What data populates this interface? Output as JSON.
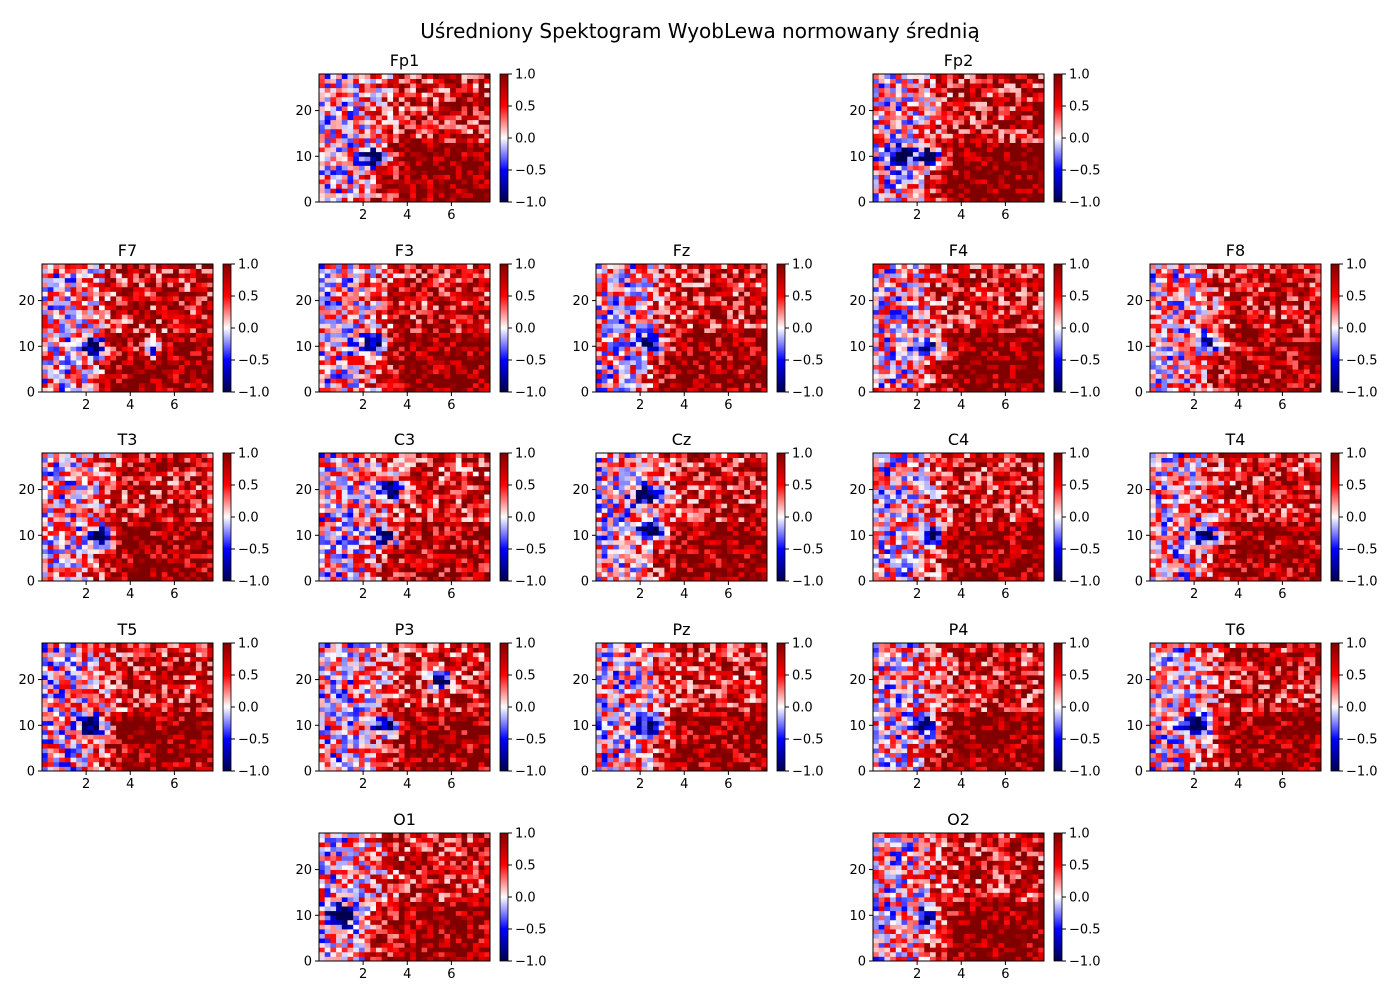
{
  "title": "Uśredniony Spektogram WyobLewa normowany średnią",
  "chart_data": {
    "type": "heatmap",
    "colormap": "seismic",
    "value_range": [
      -1.0,
      1.0
    ],
    "colorbar_ticks": [
      "1.0",
      "0.5",
      "0.0",
      "−0.5",
      "−1.0"
    ],
    "x_range": [
      0,
      7.75
    ],
    "x_ticks": [
      2,
      4,
      6
    ],
    "y_range": [
      0,
      28
    ],
    "y_ticks": [
      0,
      10,
      20
    ],
    "grid_cols": 30,
    "grid_rows": 28,
    "panels": [
      {
        "name": "Fp1",
        "seed": 11,
        "lowShift": 0.55,
        "bias": 0.15,
        "blue": [
          [
            2.5,
            10
          ]
        ]
      },
      {
        "name": "Fp2",
        "seed": 23,
        "lowShift": 0.55,
        "bias": 0.2,
        "blue": [
          [
            1.2,
            10
          ],
          [
            2.5,
            10
          ]
        ]
      },
      {
        "name": "F7",
        "seed": 37,
        "lowShift": 0.45,
        "bias": 0.2,
        "blue": [
          [
            2.3,
            10
          ],
          [
            5.0,
            10
          ]
        ]
      },
      {
        "name": "F3",
        "seed": 41,
        "lowShift": 0.5,
        "bias": 0.15,
        "blue": [
          [
            2.5,
            11
          ]
        ]
      },
      {
        "name": "Fz",
        "seed": 53,
        "lowShift": 0.45,
        "bias": 0.15,
        "blue": [
          [
            2.5,
            11
          ]
        ]
      },
      {
        "name": "F4",
        "seed": 67,
        "lowShift": 0.5,
        "bias": 0.2,
        "blue": [
          [
            2.6,
            10
          ]
        ]
      },
      {
        "name": "F8",
        "seed": 71,
        "lowShift": 0.35,
        "bias": 0.2,
        "blue": [
          [
            2.6,
            11
          ]
        ]
      },
      {
        "name": "T3",
        "seed": 83,
        "lowShift": 0.4,
        "bias": 0.2,
        "blue": [
          [
            2.6,
            10
          ]
        ]
      },
      {
        "name": "C3",
        "seed": 97,
        "lowShift": 0.35,
        "bias": 0.1,
        "blue": [
          [
            3.0,
            10
          ],
          [
            3.2,
            20
          ]
        ]
      },
      {
        "name": "Cz",
        "seed": 101,
        "lowShift": 0.45,
        "bias": 0.15,
        "blue": [
          [
            2.5,
            11
          ],
          [
            2.3,
            19
          ]
        ]
      },
      {
        "name": "C4",
        "seed": 113,
        "lowShift": 0.45,
        "bias": 0.15,
        "blue": [
          [
            2.6,
            10
          ]
        ]
      },
      {
        "name": "T4",
        "seed": 127,
        "lowShift": 0.4,
        "bias": 0.15,
        "blue": [
          [
            2.5,
            10
          ]
        ]
      },
      {
        "name": "T5",
        "seed": 131,
        "lowShift": 0.45,
        "bias": 0.15,
        "blue": [
          [
            2.3,
            10
          ]
        ]
      },
      {
        "name": "P3",
        "seed": 149,
        "lowShift": 0.45,
        "bias": 0.1,
        "blue": [
          [
            3.0,
            10
          ],
          [
            5.5,
            20
          ]
        ]
      },
      {
        "name": "Pz",
        "seed": 157,
        "lowShift": 0.45,
        "bias": 0.1,
        "blue": [
          [
            2.5,
            10
          ]
        ]
      },
      {
        "name": "P4",
        "seed": 163,
        "lowShift": 0.5,
        "bias": 0.15,
        "blue": [
          [
            2.5,
            10
          ]
        ]
      },
      {
        "name": "T6",
        "seed": 173,
        "lowShift": 0.45,
        "bias": 0.15,
        "blue": [
          [
            2.3,
            10
          ]
        ]
      },
      {
        "name": "O1",
        "seed": 181,
        "lowShift": 0.45,
        "bias": 0.15,
        "blue": [
          [
            1.0,
            10
          ]
        ]
      },
      {
        "name": "O2",
        "seed": 191,
        "lowShift": 0.5,
        "bias": 0.15,
        "blue": [
          [
            2.5,
            10
          ]
        ]
      }
    ]
  }
}
